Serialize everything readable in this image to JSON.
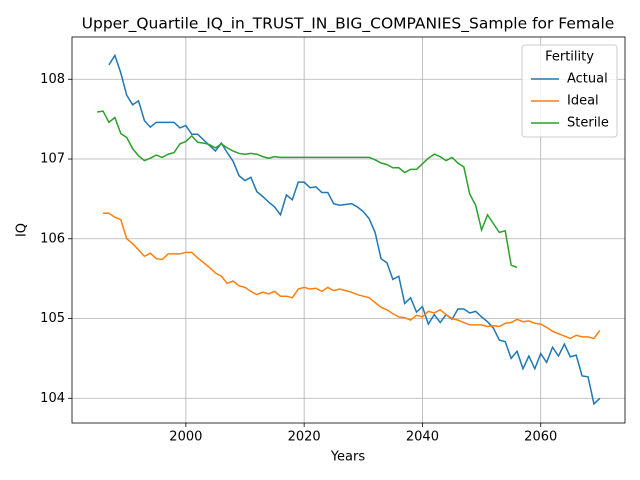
{
  "chart_data": {
    "type": "line",
    "title": "Upper_Quartile_IQ_in_TRUST_IN_BIG_COMPANIES_Sample for Female",
    "xlabel": "Years",
    "ylabel": "IQ",
    "xlim": [
      1980.75,
      2074.25
    ],
    "ylim": [
      103.69,
      108.53
    ],
    "xticks": [
      2000,
      2020,
      2040,
      2060
    ],
    "yticks": [
      104,
      105,
      106,
      107,
      108
    ],
    "grid": true,
    "legend_title": "Fertility",
    "legend_loc": "upper right",
    "series": [
      {
        "name": "Actual",
        "color": "#1f77b4",
        "x": [
          1987,
          1988,
          1989,
          1990,
          1991,
          1992,
          1993,
          1994,
          1995,
          1996,
          1997,
          1998,
          1999,
          2000,
          2001,
          2002,
          2003,
          2004,
          2005,
          2006,
          2007,
          2008,
          2009,
          2010,
          2011,
          2012,
          2013,
          2014,
          2015,
          2016,
          2017,
          2018,
          2019,
          2020,
          2021,
          2022,
          2023,
          2024,
          2025,
          2026,
          2027,
          2028,
          2029,
          2030,
          2031,
          2032,
          2033,
          2034,
          2035,
          2036,
          2037,
          2038,
          2039,
          2040,
          2041,
          2042,
          2043,
          2044,
          2045,
          2046,
          2047,
          2048,
          2049,
          2050,
          2051,
          2052,
          2053,
          2054,
          2055,
          2056,
          2057,
          2058,
          2059,
          2060,
          2061,
          2062,
          2063,
          2064,
          2065,
          2066,
          2067,
          2068,
          2069,
          2070
        ],
        "values": [
          108.18,
          108.3,
          108.08,
          107.8,
          107.68,
          107.73,
          107.48,
          107.4,
          107.46,
          107.46,
          107.46,
          107.46,
          107.39,
          107.42,
          107.31,
          107.31,
          107.24,
          107.17,
          107.1,
          107.2,
          107.08,
          106.97,
          106.79,
          106.73,
          106.77,
          106.59,
          106.53,
          106.46,
          106.4,
          106.3,
          106.55,
          106.49,
          106.71,
          106.71,
          106.64,
          106.65,
          106.58,
          106.58,
          106.44,
          106.42,
          106.43,
          106.44,
          106.4,
          106.34,
          106.25,
          106.08,
          105.75,
          105.7,
          105.49,
          105.53,
          105.19,
          105.26,
          105.08,
          105.15,
          104.93,
          105.05,
          104.95,
          105.05,
          104.99,
          105.12,
          105.12,
          105.07,
          105.09,
          105.02,
          104.96,
          104.88,
          104.73,
          104.71,
          104.5,
          104.59,
          104.37,
          104.53,
          104.37,
          104.56,
          104.45,
          104.64,
          104.53,
          104.68,
          104.52,
          104.54,
          104.28,
          104.27,
          103.93,
          104.0
        ]
      },
      {
        "name": "Ideal",
        "color": "#ff7f0e",
        "x": [
          1986,
          1987,
          1988,
          1989,
          1990,
          1991,
          1992,
          1993,
          1994,
          1995,
          1996,
          1997,
          1998,
          1999,
          2000,
          2001,
          2002,
          2003,
          2004,
          2005,
          2006,
          2007,
          2008,
          2009,
          2010,
          2011,
          2012,
          2013,
          2014,
          2015,
          2016,
          2017,
          2018,
          2019,
          2020,
          2021,
          2022,
          2023,
          2024,
          2025,
          2026,
          2027,
          2028,
          2029,
          2030,
          2031,
          2032,
          2033,
          2034,
          2035,
          2036,
          2037,
          2038,
          2039,
          2040,
          2041,
          2042,
          2043,
          2044,
          2045,
          2046,
          2047,
          2048,
          2049,
          2050,
          2051,
          2052,
          2053,
          2054,
          2055,
          2056,
          2057,
          2058,
          2059,
          2060,
          2061,
          2062,
          2063,
          2064,
          2065,
          2066,
          2067,
          2068,
          2069,
          2070
        ],
        "values": [
          106.32,
          106.32,
          106.27,
          106.24,
          106.0,
          105.94,
          105.86,
          105.78,
          105.82,
          105.75,
          105.74,
          105.81,
          105.81,
          105.81,
          105.83,
          105.83,
          105.76,
          105.7,
          105.64,
          105.57,
          105.53,
          105.44,
          105.47,
          105.41,
          105.39,
          105.34,
          105.3,
          105.33,
          105.31,
          105.34,
          105.28,
          105.28,
          105.26,
          105.37,
          105.39,
          105.37,
          105.38,
          105.34,
          105.39,
          105.35,
          105.37,
          105.35,
          105.33,
          105.3,
          105.28,
          105.26,
          105.2,
          105.14,
          105.11,
          105.06,
          105.02,
          105.01,
          104.98,
          105.04,
          105.02,
          105.09,
          105.07,
          105.11,
          105.05,
          105.0,
          104.98,
          104.95,
          104.92,
          104.92,
          104.92,
          104.9,
          104.91,
          104.9,
          104.94,
          104.95,
          104.99,
          104.96,
          104.97,
          104.94,
          104.93,
          104.89,
          104.84,
          104.81,
          104.78,
          104.75,
          104.79,
          104.77,
          104.77,
          104.75,
          104.85
        ]
      },
      {
        "name": "Sterile",
        "color": "#2ca02c",
        "x": [
          1985,
          1986,
          1987,
          1988,
          1989,
          1990,
          1991,
          1992,
          1993,
          1994,
          1995,
          1996,
          1997,
          1998,
          1999,
          2000,
          2001,
          2002,
          2003,
          2004,
          2005,
          2006,
          2007,
          2008,
          2009,
          2010,
          2011,
          2012,
          2013,
          2014,
          2015,
          2016,
          2017,
          2018,
          2019,
          2020,
          2021,
          2022,
          2023,
          2024,
          2025,
          2026,
          2027,
          2028,
          2029,
          2030,
          2031,
          2032,
          2033,
          2034,
          2035,
          2036,
          2037,
          2038,
          2039,
          2040,
          2041,
          2042,
          2043,
          2044,
          2045,
          2046,
          2047,
          2048,
          2049,
          2050,
          2051,
          2052,
          2053,
          2054,
          2055,
          2056
        ],
        "values": [
          107.59,
          107.6,
          107.46,
          107.52,
          107.32,
          107.27,
          107.13,
          107.04,
          106.98,
          107.01,
          107.05,
          107.02,
          107.06,
          107.08,
          107.19,
          107.22,
          107.29,
          107.21,
          107.2,
          107.18,
          107.14,
          107.19,
          107.14,
          107.1,
          107.07,
          107.06,
          107.07,
          107.06,
          107.03,
          107.01,
          107.03,
          107.02,
          107.02,
          107.02,
          107.02,
          107.02,
          107.02,
          107.02,
          107.02,
          107.02,
          107.02,
          107.02,
          107.02,
          107.02,
          107.02,
          107.02,
          107.02,
          106.99,
          106.95,
          106.93,
          106.89,
          106.89,
          106.83,
          106.87,
          106.87,
          106.94,
          107.01,
          107.06,
          107.03,
          106.98,
          107.02,
          106.95,
          106.9,
          106.56,
          106.42,
          106.11,
          106.3,
          106.19,
          106.08,
          106.1,
          105.67,
          105.64
        ]
      }
    ]
  }
}
